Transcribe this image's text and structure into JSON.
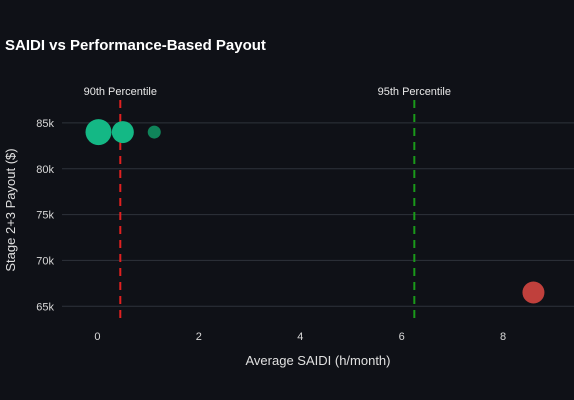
{
  "chart_data": {
    "type": "scatter",
    "title": "SAIDI vs Performance-Based Payout",
    "xlabel": "Average SAIDI (h/month)",
    "ylabel": "Stage 2+3 Payout ($)",
    "xlim": [
      -0.7,
      9.4
    ],
    "ylim": [
      63500,
      87500
    ],
    "x_ticks": [
      0,
      2,
      4,
      6,
      8
    ],
    "y_ticks": [
      65000,
      70000,
      75000,
      80000,
      85000
    ],
    "y_tick_labels": [
      "65k",
      "70k",
      "75k",
      "80k",
      "85k"
    ],
    "grid": "horizontal",
    "points": [
      {
        "x": 0.02,
        "y": 84000,
        "size": 13,
        "color": "#14b885",
        "opacity": 1.0
      },
      {
        "x": 0.5,
        "y": 84000,
        "size": 11,
        "color": "#14b885",
        "opacity": 1.0
      },
      {
        "x": 1.12,
        "y": 84000,
        "size": 6.5,
        "color": "#119966",
        "opacity": 0.85
      },
      {
        "x": 8.6,
        "y": 66500,
        "size": 11,
        "color": "#c0403c",
        "opacity": 1.0
      }
    ],
    "reference_lines": [
      {
        "x": 0.45,
        "label": "90th Percentile",
        "color": "#e02020"
      },
      {
        "x": 6.25,
        "label": "95th Percentile",
        "color": "#1a9a1a"
      }
    ]
  }
}
